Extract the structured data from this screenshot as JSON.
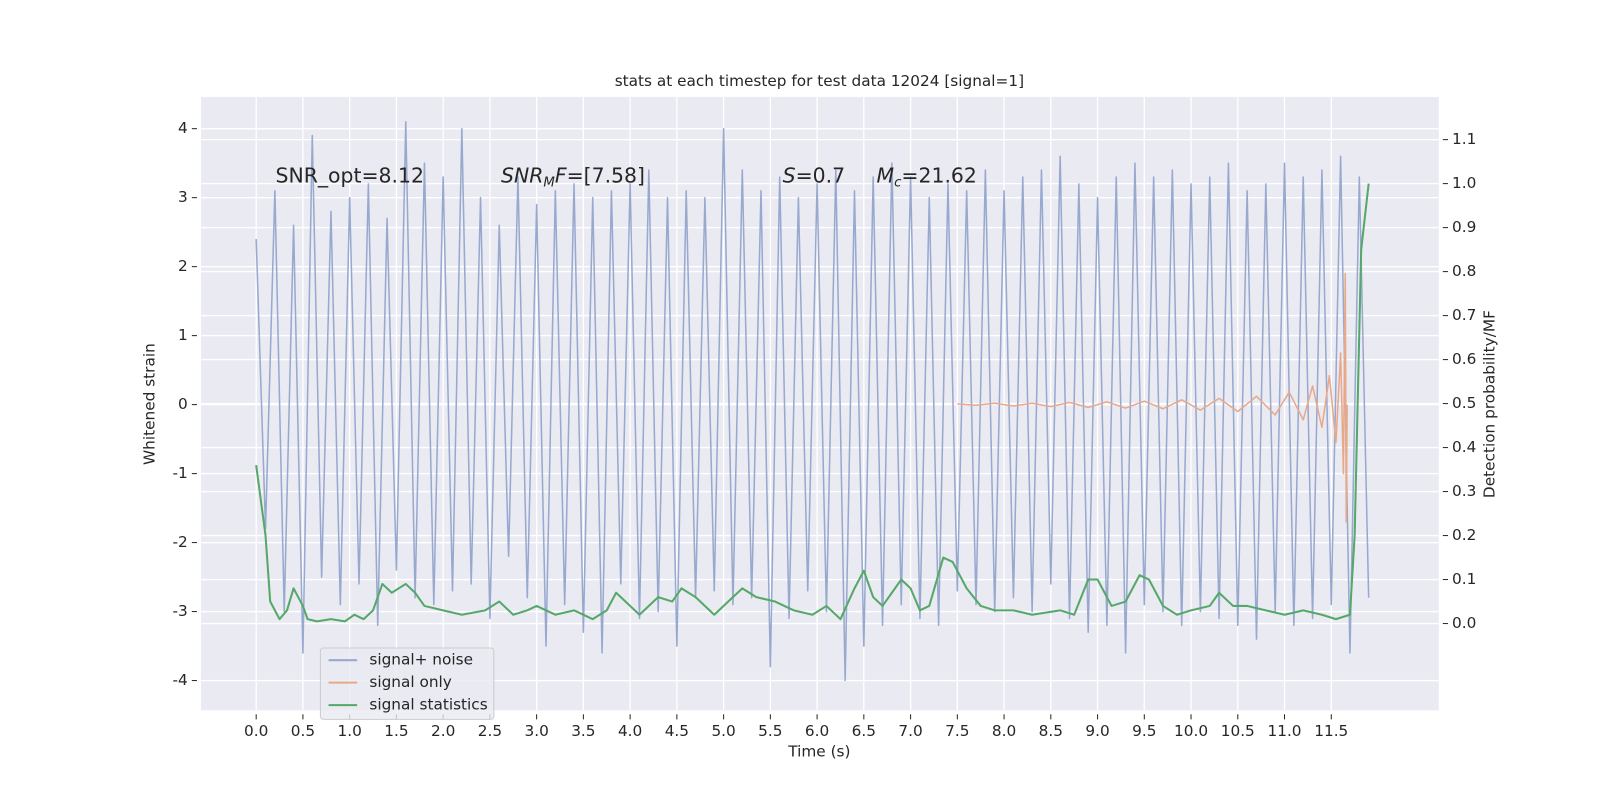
{
  "chart_data": {
    "type": "line",
    "title": "stats at each timestep for test data 12024 [signal=1]",
    "x_label": "Time (s)",
    "y_label": "Whitened strain",
    "y2_label": "Detection probability/MF",
    "xlim": [
      -0.59,
      12.65
    ],
    "ylim": [
      -4.43,
      4.46
    ],
    "y2lim": [
      -0.197,
      1.197
    ],
    "xticks": [
      {
        "value": 0,
        "label": "0.0"
      },
      0.5,
      {
        "value": 1,
        "label": "1.0"
      },
      1.5,
      {
        "value": 2,
        "label": "2.0"
      },
      2.5,
      {
        "value": 3,
        "label": "3.0"
      },
      3.5,
      {
        "value": 4,
        "label": "4.0"
      },
      4.5,
      {
        "value": 5,
        "label": "5.0"
      },
      5.5,
      {
        "value": 6,
        "label": "6.0"
      },
      6.5,
      {
        "value": 7,
        "label": "7.0"
      },
      7.5,
      {
        "value": 8,
        "label": "8.0"
      },
      8.5,
      {
        "value": 9,
        "label": "9.0"
      },
      9.5,
      {
        "value": 10,
        "label": "10.0"
      },
      10.5,
      {
        "value": 11,
        "label": "11.0"
      },
      11.5
    ],
    "yticks": [
      -4,
      -3,
      -2,
      -1,
      0,
      1,
      2,
      3,
      4
    ],
    "y2ticks": [
      {
        "value": 0,
        "label": "0.0"
      },
      0.1,
      0.2,
      0.3,
      0.4,
      0.5,
      0.6,
      0.7,
      0.8,
      0.9,
      {
        "value": 1,
        "label": "1.0"
      },
      1.1
    ],
    "grid": true,
    "legend": "lower left",
    "annotations": [
      [
        {
          "text": "SNR_opt=8.12"
        }
      ],
      [
        {
          "text": "SNR",
          "italic": true
        },
        {
          "text": "M",
          "italic": true,
          "sub": true
        },
        {
          "text": "F",
          "italic": true
        },
        {
          "text": "=[7.58]"
        }
      ],
      [
        {
          "text": "S",
          "italic": true
        },
        {
          "text": "=0.7"
        }
      ],
      [
        {
          "text": "M",
          "italic": true
        },
        {
          "text": "c",
          "italic": true,
          "sub": true
        },
        {
          "text": "=21.62"
        }
      ]
    ],
    "series": [
      {
        "name": "signal+ noise",
        "color": "#98a9cf",
        "x": [
          0,
          0.1,
          0.2,
          0.3,
          0.4,
          0.5,
          0.6,
          0.7,
          0.8,
          0.9,
          1,
          1.1,
          1.2,
          1.3,
          1.4,
          1.5,
          1.6,
          1.7,
          1.8,
          1.9,
          2,
          2.1,
          2.2,
          2.3,
          2.4,
          2.5,
          2.6,
          2.7,
          2.8,
          2.9,
          3,
          3.1,
          3.2,
          3.3,
          3.4,
          3.5,
          3.6,
          3.7,
          3.8,
          3.9,
          4,
          4.1,
          4.2,
          4.3,
          4.4,
          4.5,
          4.6,
          4.7,
          4.8,
          4.9,
          5,
          5.1,
          5.2,
          5.3,
          5.4,
          5.5,
          5.6,
          5.7,
          5.8,
          5.9,
          6,
          6.1,
          6.2,
          6.3,
          6.4,
          6.5,
          6.6,
          6.7,
          6.8,
          6.9,
          7,
          7.1,
          7.2,
          7.3,
          7.4,
          7.5,
          7.6,
          7.7,
          7.8,
          7.9,
          8,
          8.1,
          8.2,
          8.3,
          8.4,
          8.5,
          8.6,
          8.7,
          8.8,
          8.9,
          9,
          9.1,
          9.2,
          9.3,
          9.4,
          9.5,
          9.6,
          9.7,
          9.8,
          9.9,
          10,
          10.1,
          10.2,
          10.3,
          10.4,
          10.5,
          10.6,
          10.7,
          10.8,
          10.9,
          11,
          11.1,
          11.2,
          11.3,
          11.4,
          11.5,
          11.6,
          11.7,
          11.8,
          11.9
        ],
        "values": [
          2.4,
          -1.8,
          3.1,
          -3.0,
          2.6,
          -3.6,
          3.9,
          -2.5,
          2.8,
          -2.9,
          3.0,
          -2.6,
          3.2,
          -3.2,
          2.7,
          -2.4,
          4.1,
          -2.8,
          3.5,
          -2.9,
          3.3,
          -2.7,
          4.0,
          -2.6,
          3.0,
          -3.1,
          2.6,
          -2.2,
          3.3,
          -2.8,
          2.9,
          -3.5,
          3.1,
          -2.9,
          3.2,
          -3.3,
          3.0,
          -3.6,
          3.1,
          -2.6,
          3.2,
          -3.1,
          3.4,
          -3.0,
          3.0,
          -3.5,
          3.1,
          -2.8,
          3.0,
          -2.7,
          4.0,
          -2.9,
          3.4,
          -2.8,
          3.1,
          -3.8,
          3.3,
          -3.1,
          3.0,
          -2.7,
          3.2,
          -3.0,
          3.4,
          -4.0,
          3.1,
          -3.5,
          3.3,
          -3.2,
          3.5,
          -2.9,
          3.3,
          -3.1,
          3.0,
          -3.2,
          3.2,
          -2.7,
          3.1,
          -2.9,
          3.4,
          -3.0,
          3.1,
          -2.8,
          3.3,
          -3.0,
          3.4,
          -2.6,
          3.6,
          -3.1,
          3.2,
          -3.3,
          3.0,
          -3.2,
          3.3,
          -3.6,
          3.5,
          -2.9,
          3.3,
          -3.0,
          3.4,
          -3.2,
          3.2,
          -3.0,
          3.3,
          -3.1,
          3.5,
          -3.2,
          3.1,
          -3.4,
          3.2,
          -3.0,
          3.5,
          -3.2,
          3.3,
          -3.1,
          3.4,
          -2.9,
          3.6,
          -3.6,
          3.3,
          -2.8
        ]
      },
      {
        "name": "signal only",
        "color": "#e8a98a",
        "x": [
          7.5,
          7.7,
          7.9,
          8.1,
          8.3,
          8.5,
          8.7,
          8.9,
          9.1,
          9.3,
          9.5,
          9.7,
          9.9,
          10.1,
          10.3,
          10.5,
          10.7,
          10.9,
          11.05,
          11.2,
          11.3,
          11.4,
          11.48,
          11.55,
          11.6,
          11.63,
          11.65,
          11.66,
          11.67
        ],
        "values": [
          0.01,
          -0.01,
          0.02,
          -0.02,
          0.02,
          -0.03,
          0.03,
          -0.04,
          0.04,
          -0.05,
          0.05,
          -0.06,
          0.07,
          -0.08,
          0.09,
          -0.1,
          0.12,
          -0.15,
          0.18,
          -0.22,
          0.27,
          -0.33,
          0.42,
          -0.55,
          0.75,
          -1.0,
          1.9,
          -1.7,
          0
        ]
      },
      {
        "name": "signal statistics",
        "color": "#55a868",
        "axis": "y2",
        "x": [
          0,
          0.1,
          0.15,
          0.25,
          0.33,
          0.4,
          0.5,
          0.55,
          0.65,
          0.8,
          0.95,
          1.05,
          1.15,
          1.25,
          1.35,
          1.45,
          1.6,
          1.7,
          1.8,
          2.0,
          2.2,
          2.45,
          2.6,
          2.75,
          2.9,
          3.0,
          3.2,
          3.4,
          3.6,
          3.75,
          3.85,
          3.95,
          4.1,
          4.3,
          4.45,
          4.55,
          4.7,
          4.9,
          5.05,
          5.2,
          5.35,
          5.55,
          5.75,
          5.95,
          6.1,
          6.25,
          6.4,
          6.5,
          6.6,
          6.7,
          6.9,
          7.0,
          7.1,
          7.2,
          7.35,
          7.45,
          7.6,
          7.75,
          7.9,
          8.1,
          8.3,
          8.6,
          8.75,
          8.9,
          9.0,
          9.15,
          9.3,
          9.45,
          9.55,
          9.7,
          9.85,
          10.0,
          10.2,
          10.3,
          10.45,
          10.6,
          10.8,
          11.0,
          11.2,
          11.4,
          11.55,
          11.7,
          11.75,
          11.82,
          11.9
        ],
        "values": [
          0.36,
          0.2,
          0.05,
          0.01,
          0.03,
          0.08,
          0.04,
          0.01,
          0.005,
          0.01,
          0.005,
          0.02,
          0.01,
          0.03,
          0.09,
          0.07,
          0.09,
          0.07,
          0.04,
          0.03,
          0.02,
          0.03,
          0.05,
          0.02,
          0.03,
          0.04,
          0.02,
          0.03,
          0.01,
          0.03,
          0.07,
          0.05,
          0.02,
          0.06,
          0.05,
          0.08,
          0.06,
          0.02,
          0.05,
          0.08,
          0.06,
          0.05,
          0.03,
          0.02,
          0.04,
          0.01,
          0.08,
          0.12,
          0.06,
          0.04,
          0.1,
          0.08,
          0.03,
          0.04,
          0.15,
          0.14,
          0.08,
          0.04,
          0.03,
          0.03,
          0.02,
          0.03,
          0.02,
          0.1,
          0.1,
          0.04,
          0.05,
          0.11,
          0.1,
          0.04,
          0.02,
          0.03,
          0.04,
          0.07,
          0.04,
          0.04,
          0.03,
          0.02,
          0.03,
          0.02,
          0.01,
          0.02,
          0.2,
          0.85,
          1.0
        ]
      }
    ]
  }
}
